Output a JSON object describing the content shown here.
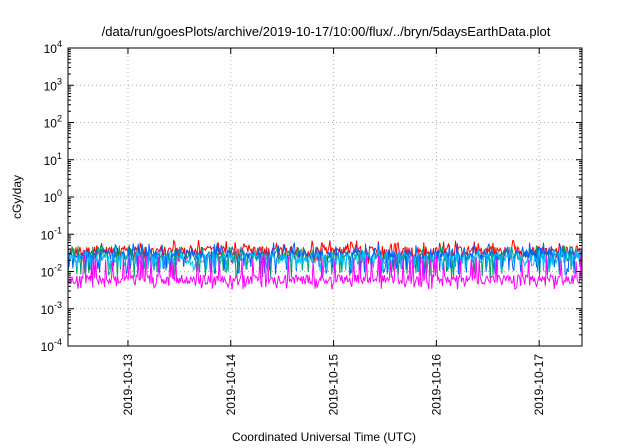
{
  "chart_data": {
    "type": "line",
    "title": "/data/run/goesPlots/archive/2019-10-17/10:00/flux/../bryn/5daysEarthData.plot",
    "xlabel": "Coordinated Universal Time (UTC)",
    "ylabel": "cGy/day",
    "y_scale": "log",
    "ylim": [
      0.0001,
      10000
    ],
    "y_ticks": [
      {
        "value": 0.0001,
        "base": "10",
        "exp": "-4"
      },
      {
        "value": 0.001,
        "base": "10",
        "exp": "-3"
      },
      {
        "value": 0.01,
        "base": "10",
        "exp": "-2"
      },
      {
        "value": 0.1,
        "base": "10",
        "exp": "-1"
      },
      {
        "value": 1,
        "base": "10",
        "exp": "0"
      },
      {
        "value": 10,
        "base": "10",
        "exp": "1"
      },
      {
        "value": 100,
        "base": "10",
        "exp": "2"
      },
      {
        "value": 1000,
        "base": "10",
        "exp": "3"
      },
      {
        "value": 10000,
        "base": "10",
        "exp": "4"
      }
    ],
    "xlim": [
      "2019-10-12T10:00",
      "2019-10-17T10:00"
    ],
    "x_ticks": [
      "2019-10-13",
      "2019-10-14",
      "2019-10-15",
      "2019-10-16",
      "2019-10-17"
    ],
    "grid": true,
    "series": [
      {
        "color": "#ff0000",
        "baseline": 0.035,
        "spike_max": 0.07,
        "dip_min": 0.02
      },
      {
        "color": "#00a060",
        "baseline": 0.025,
        "spike_max": 0.05,
        "dip_min": 0.008
      },
      {
        "color": "#0060ff",
        "baseline": 0.028,
        "spike_max": 0.06,
        "dip_min": 0.01
      },
      {
        "color": "#00c0ff",
        "baseline": 0.022,
        "spike_max": 0.04,
        "dip_min": 0.012
      },
      {
        "color": "#ff00ff",
        "baseline": 0.006,
        "spike_max": 0.03,
        "dip_min": 0.004
      }
    ]
  }
}
